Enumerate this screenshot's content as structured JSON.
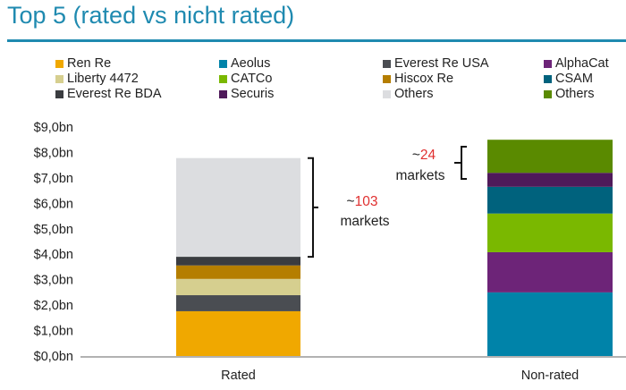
{
  "title": "Top 5 (rated vs nicht rated)",
  "chart_data": {
    "type": "bar",
    "stacked": true,
    "title": "Top 5 (rated vs nicht rated)",
    "categories": [
      "Rated",
      "Non-rated"
    ],
    "ylim": [
      0,
      9
    ],
    "yticks": [
      "$0,0bn",
      "$1,0bn",
      "$2,0bn",
      "$3,0bn",
      "$4,0bn",
      "$5,0bn",
      "$6,0bn",
      "$7,0bn",
      "$8,0bn",
      "$9,0bn"
    ],
    "series": [
      {
        "name": "Ren Re",
        "color": "#f0a800",
        "category": "Rated",
        "value": 1.76
      },
      {
        "name": "Everest Re USA",
        "color": "#4a4d52",
        "category": "Rated",
        "value": 0.63
      },
      {
        "name": "Liberty 4472",
        "color": "#d6cf8f",
        "category": "Rated",
        "value": 0.64
      },
      {
        "name": "Hiscox Re",
        "color": "#b57e00",
        "category": "Rated",
        "value": 0.53
      },
      {
        "name": "Everest Re BDA",
        "color": "#3a3c40",
        "category": "Rated",
        "value": 0.34
      },
      {
        "name": "Others",
        "color": "#dcdde0",
        "category": "Rated",
        "value": 3.88
      },
      {
        "name": "Aeolus",
        "color": "#0083a9",
        "category": "Non-rated",
        "value": 2.5
      },
      {
        "name": "AlphaCat",
        "color": "#6d2478",
        "category": "Non-rated",
        "value": 1.58
      },
      {
        "name": "CATCo",
        "color": "#7ab800",
        "category": "Non-rated",
        "value": 1.52
      },
      {
        "name": "CSAM",
        "color": "#00627d",
        "category": "Non-rated",
        "value": 1.05
      },
      {
        "name": "Securis",
        "color": "#4f1a5a",
        "category": "Non-rated",
        "value": 0.55
      },
      {
        "name": "Others",
        "color": "#5a8a00",
        "category": "Non-rated",
        "value": 1.3
      }
    ],
    "legend": [
      {
        "label": "Ren Re",
        "color": "#f0a800"
      },
      {
        "label": "Aeolus",
        "color": "#0083a9"
      },
      {
        "label": "Everest Re USA",
        "color": "#4a4d52"
      },
      {
        "label": "AlphaCat",
        "color": "#6d2478"
      },
      {
        "label": "Liberty 4472",
        "color": "#d6cf8f"
      },
      {
        "label": "CATCo",
        "color": "#7ab800"
      },
      {
        "label": "Hiscox Re",
        "color": "#b57e00"
      },
      {
        "label": "CSAM",
        "color": "#00627d"
      },
      {
        "label": "Everest Re BDA",
        "color": "#3a3c40"
      },
      {
        "label": "Securis",
        "color": "#4f1a5a"
      },
      {
        "label": "Others",
        "color": "#dcdde0"
      },
      {
        "label": "Others",
        "color": "#5a8a00"
      }
    ],
    "legend_placement": "top",
    "annotations": [
      {
        "tilde": "~",
        "number": "103",
        "text": "markets",
        "category": "Rated",
        "range": [
          3.9,
          7.78
        ]
      },
      {
        "tilde": "~",
        "number": "24",
        "text": "markets",
        "category": "Non-rated",
        "range": [
          7.2,
          8.5
        ]
      }
    ],
    "annotation_number_color": "#e03030"
  }
}
